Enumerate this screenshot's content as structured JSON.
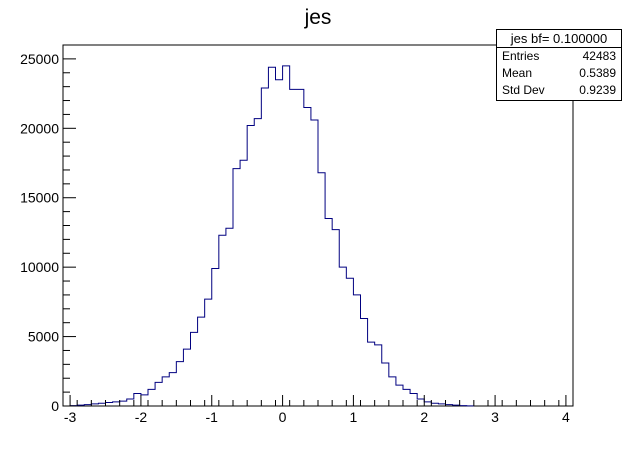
{
  "chart_data": {
    "type": "histogram",
    "title": "jes",
    "xlim": [
      -3.1,
      4.1
    ],
    "ylim": [
      0,
      26000
    ],
    "x_ticks": [
      -3,
      -2,
      -1,
      0,
      1,
      2,
      3,
      4
    ],
    "y_ticks": [
      0,
      5000,
      10000,
      15000,
      20000,
      25000
    ],
    "bin_width": 0.1,
    "bin_start": -3.0,
    "line_color": "#000080",
    "values": [
      30,
      60,
      100,
      150,
      200,
      250,
      300,
      350,
      500,
      900,
      800,
      1200,
      1700,
      2100,
      2400,
      3200,
      4100,
      5300,
      6400,
      7700,
      9900,
      12300,
      12800,
      17100,
      17700,
      20200,
      20700,
      22900,
      24400,
      23500,
      24500,
      22800,
      22800,
      21500,
      20600,
      16800,
      13500,
      12700,
      10000,
      9200,
      8000,
      6300,
      4600,
      4400,
      3100,
      2100,
      1500,
      1200,
      900,
      500,
      300,
      200,
      150,
      100,
      60,
      30,
      10
    ],
    "grid": false,
    "legend": "none"
  },
  "stats": {
    "title": "jes bf= 0.100000",
    "rows": [
      {
        "label": "Entries",
        "value": "42483"
      },
      {
        "label": "Mean",
        "value": "0.5389"
      },
      {
        "label": "Std Dev",
        "value": "0.9239"
      }
    ]
  }
}
